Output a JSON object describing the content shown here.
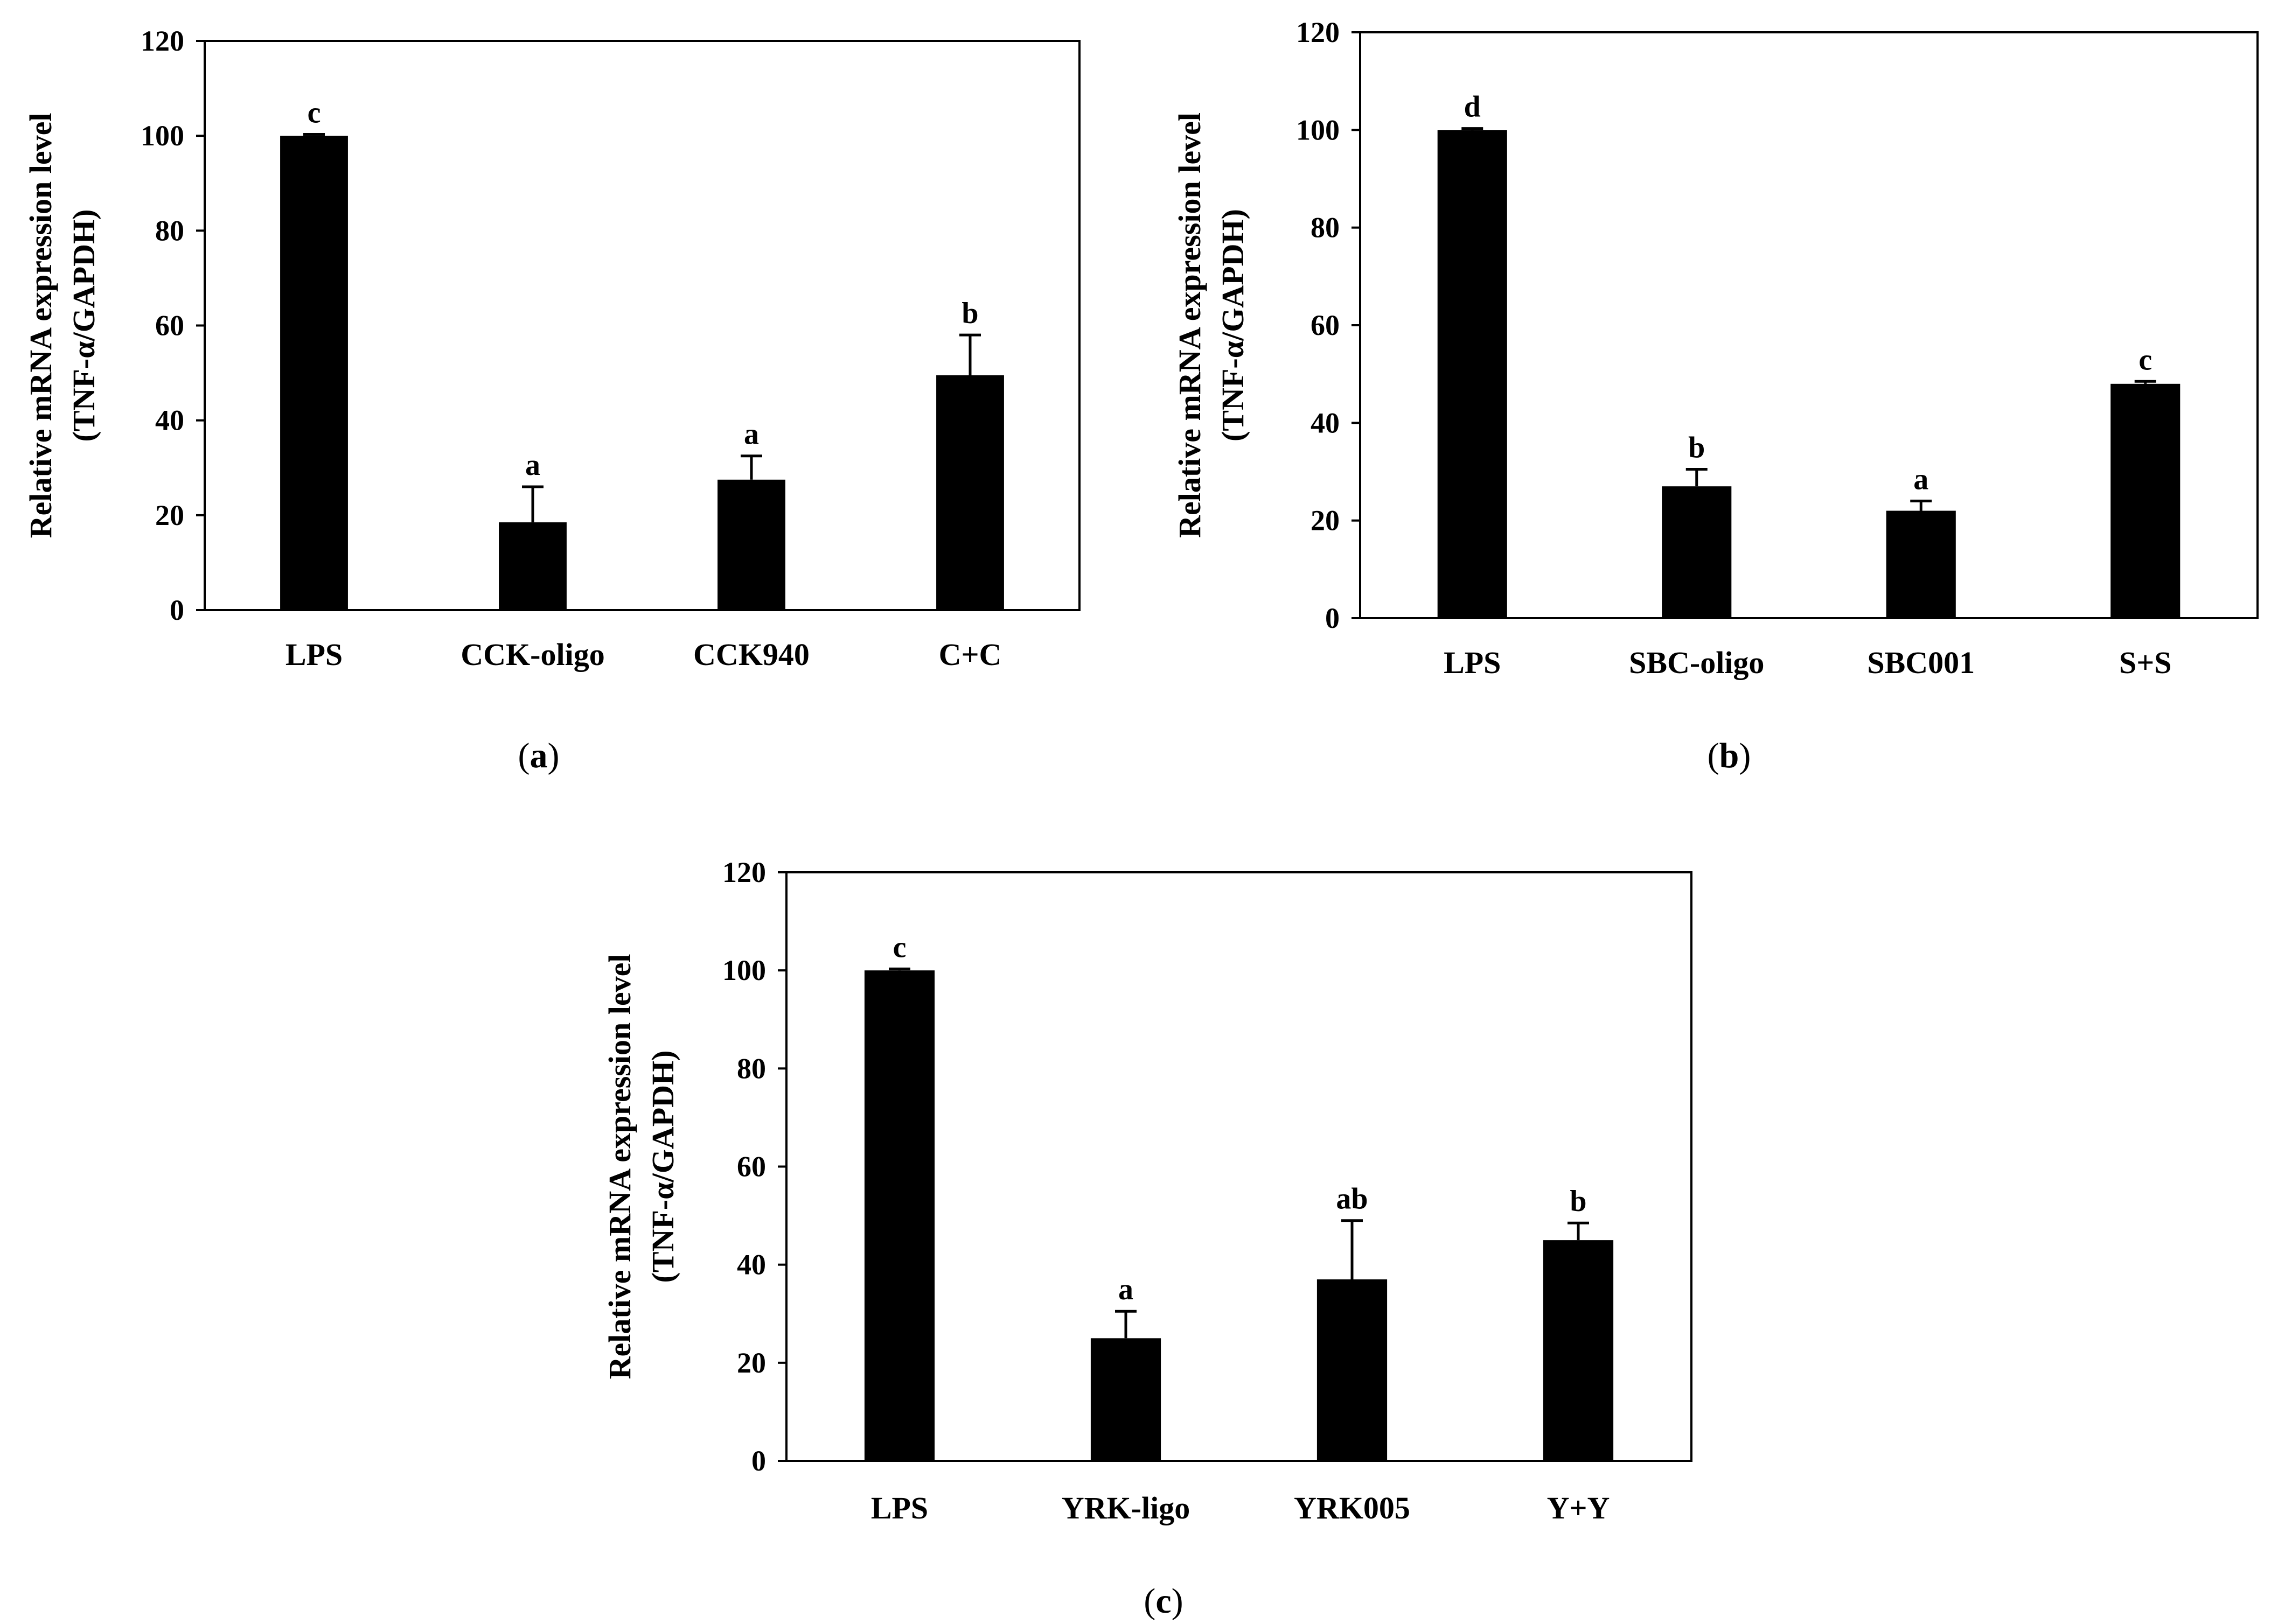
{
  "figure": {
    "style": {
      "bar_color": "#000000",
      "axis_color": "#000000",
      "background": "#ffffff"
    },
    "panel_labels": [
      {
        "open": "(",
        "letter": "a",
        "close": ")"
      },
      {
        "open": "(",
        "letter": "b",
        "close": ")"
      },
      {
        "open": "(",
        "letter": "c",
        "close": ")"
      }
    ]
  },
  "chart_data": [
    {
      "type": "bar",
      "panel": "a",
      "title": "",
      "ylabel_line1": "Relative mRNA expression level",
      "ylabel_line2": "(TNF-α/GAPDH)",
      "xlabel": "",
      "ylim": [
        0,
        120
      ],
      "yticks": [
        0,
        20,
        40,
        60,
        80,
        100,
        120
      ],
      "categories": [
        "LPS",
        "CCK-oligo",
        "CCK940",
        "C+C"
      ],
      "values": [
        100,
        18.5,
        27.5,
        49.5
      ],
      "errors": [
        0.3,
        7.5,
        5,
        8.5
      ],
      "annotations": [
        "c",
        "a",
        "a",
        "b"
      ]
    },
    {
      "type": "bar",
      "panel": "b",
      "title": "",
      "ylabel_line1": "Relative mRNA expression level",
      "ylabel_line2": "(TNF-α/GAPDH)",
      "xlabel": "",
      "ylim": [
        0,
        120
      ],
      "yticks": [
        0,
        20,
        40,
        60,
        80,
        100,
        120
      ],
      "categories": [
        "LPS",
        "SBC-oligo",
        "SBC001",
        "S+S"
      ],
      "values": [
        100,
        27,
        22,
        48
      ],
      "errors": [
        0.3,
        3.5,
        2,
        0.5
      ],
      "annotations": [
        "d",
        "b",
        "a",
        "c"
      ]
    },
    {
      "type": "bar",
      "panel": "c",
      "title": "",
      "ylabel_line1": "Relative mRNA expression level",
      "ylabel_line2": "(TNF-α/GAPDH)",
      "xlabel": "",
      "ylim": [
        0,
        120
      ],
      "yticks": [
        0,
        20,
        40,
        60,
        80,
        100,
        120
      ],
      "categories": [
        "LPS",
        "YRK-ligo",
        "YRK005",
        "Y+Y"
      ],
      "values": [
        100,
        25,
        37,
        45
      ],
      "errors": [
        0.3,
        5.5,
        12,
        3.5
      ],
      "annotations": [
        "c",
        "a",
        "ab",
        "b"
      ]
    }
  ]
}
